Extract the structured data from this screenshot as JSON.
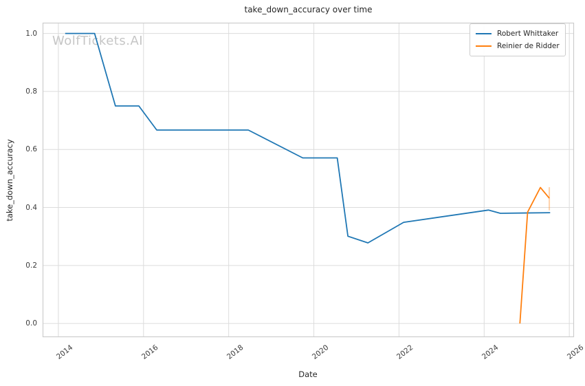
{
  "figure": {
    "background": "#ffffff",
    "watermark": "WolfTickets.AI"
  },
  "colors": {
    "grid": "#dcdcdc",
    "spine": "#cccccc",
    "title_text": "#262626",
    "tick_text": "#3b3b3b",
    "watermark": "#c6c6c6",
    "series_blue": "#1f77b4",
    "series_orange": "#ff7f0e"
  },
  "chart_data": {
    "type": "line",
    "title": "take_down_accuracy over time",
    "xlabel": "Date",
    "ylabel": "take_down_accuracy",
    "grid": true,
    "legend_position": "upper right",
    "xlim": [
      2013.63,
      2026.11
    ],
    "ylim": [
      -0.047,
      1.037
    ],
    "x_ticks": [
      {
        "label": "2014",
        "value": 2014
      },
      {
        "label": "2016",
        "value": 2016
      },
      {
        "label": "2018",
        "value": 2018
      },
      {
        "label": "2020",
        "value": 2020
      },
      {
        "label": "2022",
        "value": 2022
      },
      {
        "label": "2024",
        "value": 2024
      },
      {
        "label": "2026",
        "value": 2026
      }
    ],
    "y_ticks": [
      {
        "label": "0.0",
        "value": 0.0
      },
      {
        "label": "0.2",
        "value": 0.2
      },
      {
        "label": "0.4",
        "value": 0.4
      },
      {
        "label": "0.6",
        "value": 0.6
      },
      {
        "label": "0.8",
        "value": 0.8
      },
      {
        "label": "1.0",
        "value": 1.0
      }
    ],
    "series": [
      {
        "name": "Robert Whittaker",
        "color": "#1f77b4",
        "line_width": 1.8,
        "points": [
          [
            2014.16,
            1.0
          ],
          [
            2014.85,
            1.0
          ],
          [
            2015.34,
            0.75
          ],
          [
            2015.89,
            0.75
          ],
          [
            2016.31,
            0.667
          ],
          [
            2018.46,
            0.667
          ],
          [
            2019.74,
            0.571
          ],
          [
            2020.55,
            0.571
          ],
          [
            2020.8,
            0.301
          ],
          [
            2021.27,
            0.278
          ],
          [
            2022.11,
            0.349
          ],
          [
            2024.1,
            0.391
          ],
          [
            2024.38,
            0.38
          ],
          [
            2025.55,
            0.382
          ]
        ]
      },
      {
        "name": "Reinier de Ridder",
        "color": "#ff7f0e",
        "line_width": 1.8,
        "points": [
          [
            2024.84,
            0.0
          ],
          [
            2025.02,
            0.384
          ],
          [
            2025.32,
            0.469
          ],
          [
            2025.53,
            0.432
          ]
        ],
        "end_tick": {
          "x": 2025.53,
          "y_from": 0.39,
          "y_to": 0.47,
          "opacity": 0.35
        }
      }
    ]
  }
}
